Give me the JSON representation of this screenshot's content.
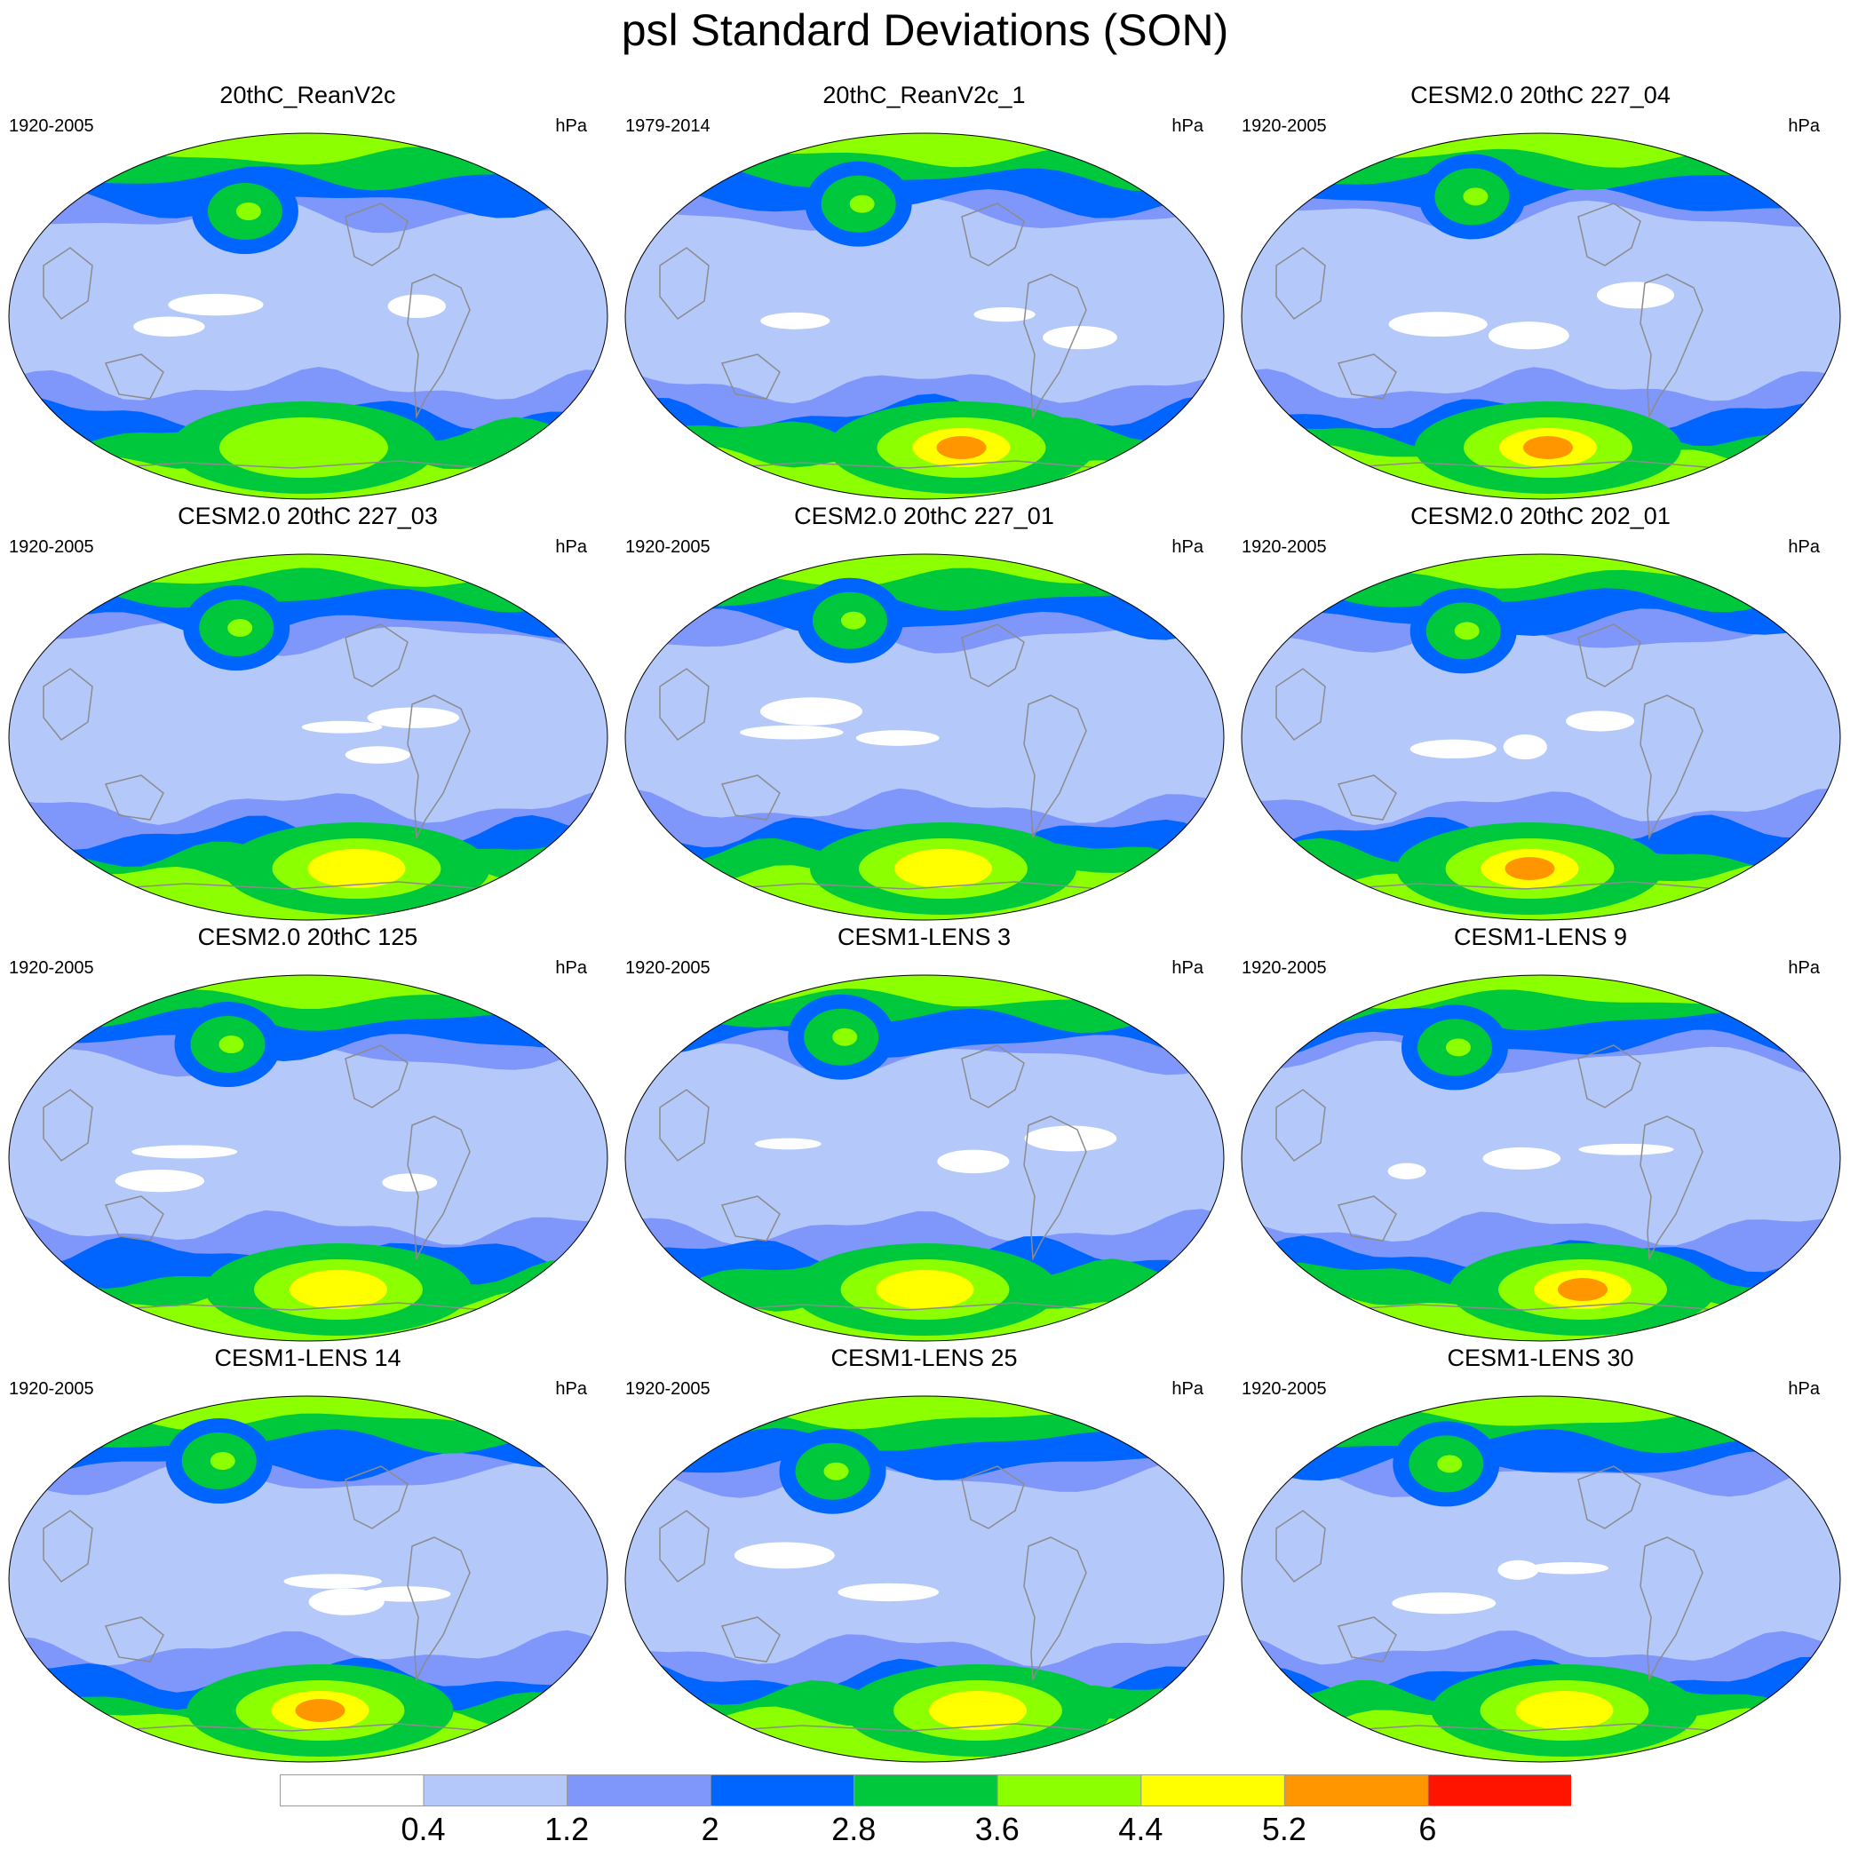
{
  "title": "psl Standard Deviations (SON)",
  "panels": [
    {
      "title": "20thC_ReanV2c",
      "period": "1920-2005",
      "units": "hPa",
      "antarctic_peak_level": 5
    },
    {
      "title": "20thC_ReanV2c_1",
      "period": "1979-2014",
      "units": "hPa",
      "antarctic_peak_level": 7
    },
    {
      "title": "CESM2.0 20thC 227_04",
      "period": "1920-2005",
      "units": "hPa",
      "antarctic_peak_level": 7
    },
    {
      "title": "CESM2.0 20thC 227_03",
      "period": "1920-2005",
      "units": "hPa",
      "antarctic_peak_level": 6
    },
    {
      "title": "CESM2.0 20thC 227_01",
      "period": "1920-2005",
      "units": "hPa",
      "antarctic_peak_level": 6
    },
    {
      "title": "CESM2.0 20thC 202_01",
      "period": "1920-2005",
      "units": "hPa",
      "antarctic_peak_level": 7
    },
    {
      "title": "CESM2.0 20thC 125",
      "period": "1920-2005",
      "units": "hPa",
      "antarctic_peak_level": 6
    },
    {
      "title": "CESM1-LENS 3",
      "period": "1920-2005",
      "units": "hPa",
      "antarctic_peak_level": 6
    },
    {
      "title": "CESM1-LENS 9",
      "period": "1920-2005",
      "units": "hPa",
      "antarctic_peak_level": 7
    },
    {
      "title": "CESM1-LENS 14",
      "period": "1920-2005",
      "units": "hPa",
      "antarctic_peak_level": 7
    },
    {
      "title": "CESM1-LENS 25",
      "period": "1920-2005",
      "units": "hPa",
      "antarctic_peak_level": 6
    },
    {
      "title": "CESM1-LENS 30",
      "period": "1920-2005",
      "units": "hPa",
      "antarctic_peak_level": 6
    }
  ],
  "colorbar": {
    "levels": [
      "0.4",
      "1.2",
      "2",
      "2.8",
      "3.6",
      "4.4",
      "5.2",
      "6"
    ],
    "colors": [
      "#ffffff",
      "#b4c8fa",
      "#7f96fa",
      "#0064ff",
      "#00c83c",
      "#8cff00",
      "#ffff00",
      "#ff9600",
      "#ff1400"
    ]
  },
  "map_colors": {
    "land_outline": "#8c8c8c",
    "frame": "#000000"
  }
}
